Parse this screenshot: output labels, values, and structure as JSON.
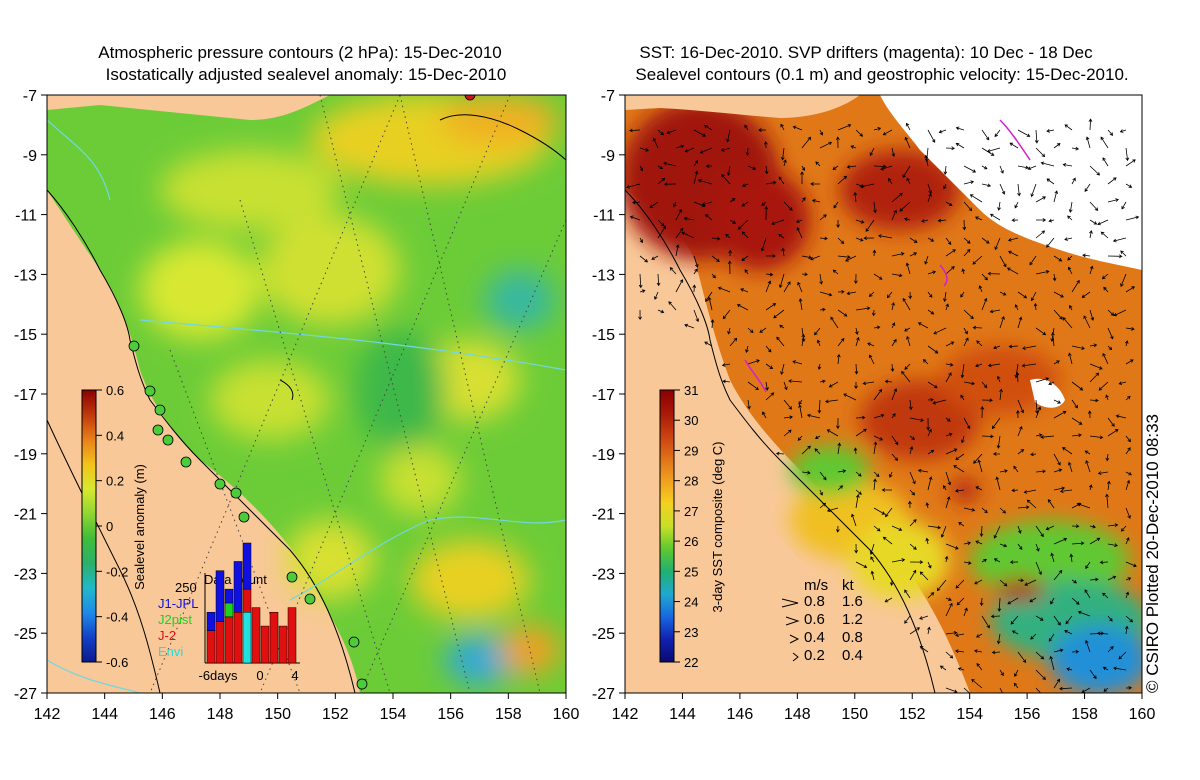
{
  "left_panel": {
    "title_lines": [
      "Atmospheric pressure contours (2 hPa): 15-Dec-2010",
      "Isostatically adjusted sealevel anomaly: 15-Dec-2010"
    ],
    "x_ticks": [
      "142",
      "144",
      "146",
      "148",
      "150",
      "152",
      "154",
      "156",
      "158",
      "160"
    ],
    "y_ticks": [
      "-7",
      "-9",
      "-11",
      "-13",
      "-15",
      "-17",
      "-19",
      "-21",
      "-23",
      "-25",
      "-27"
    ],
    "colorbar": {
      "label": "Sealevel anomaly (m)",
      "ticks": [
        "0.6",
        "0.4",
        "0.2",
        "0",
        "-0.2",
        "-0.4",
        "-0.6"
      ],
      "colors": [
        "#8b0000",
        "#c0390b",
        "#e8801a",
        "#f4c21a",
        "#d8e830",
        "#8fd630",
        "#3fbd3a",
        "#2bb06a",
        "#22b8c8",
        "#1e8be8",
        "#1440c8",
        "#0a1a8c"
      ]
    },
    "data_count": {
      "title": "Data count",
      "ymax_label": "250",
      "legend": [
        {
          "name": "J1-JPL",
          "color": "#1010e0"
        },
        {
          "name": "J2pist",
          "color": "#20d020"
        },
        {
          "name": "J-2",
          "color": "#e01010"
        },
        {
          "name": "Envi",
          "color": "#20e0e0"
        }
      ],
      "x_labels": [
        "-6days",
        "0",
        "4"
      ],
      "bars": [
        {
          "stack": [
            {
              "c": "#e01010",
              "v": 0.35
            },
            {
              "c": "#1010e0",
              "v": 0.2
            }
          ]
        },
        {
          "stack": [
            {
              "c": "#e01010",
              "v": 0.45
            },
            {
              "c": "#1010e0",
              "v": 0.55
            }
          ]
        },
        {
          "stack": [
            {
              "c": "#e01010",
              "v": 0.5
            },
            {
              "c": "#20d020",
              "v": 0.15
            },
            {
              "c": "#1010e0",
              "v": 0.15
            }
          ]
        },
        {
          "stack": [
            {
              "c": "#e01010",
              "v": 0.55
            },
            {
              "c": "#1010e0",
              "v": 0.55
            }
          ]
        },
        {
          "stack": [
            {
              "c": "#20e0e0",
              "v": 0.55
            },
            {
              "c": "#e01010",
              "v": 0.25
            },
            {
              "c": "#1010e0",
              "v": 0.5
            }
          ]
        },
        {
          "stack": [
            {
              "c": "#e01010",
              "v": 0.6
            }
          ]
        },
        {
          "stack": [
            {
              "c": "#e01010",
              "v": 0.4
            }
          ]
        },
        {
          "stack": [
            {
              "c": "#e01010",
              "v": 0.55
            }
          ]
        },
        {
          "stack": [
            {
              "c": "#e01010",
              "v": 0.4
            }
          ]
        },
        {
          "stack": [
            {
              "c": "#e01010",
              "v": 0.6
            }
          ]
        }
      ]
    }
  },
  "right_panel": {
    "title_lines": [
      "SST: 16-Dec-2010. SVP drifters (magenta): 10 Dec - 18 Dec",
      "Sealevel contours (0.1 m) and geostrophic velocity: 15-Dec-2010."
    ],
    "x_ticks": [
      "142",
      "144",
      "146",
      "148",
      "150",
      "152",
      "154",
      "156",
      "158",
      "160"
    ],
    "y_ticks": [
      "-7",
      "-9",
      "-11",
      "-13",
      "-15",
      "-17",
      "-19",
      "-21",
      "-23",
      "-25",
      "-27"
    ],
    "colorbar": {
      "label": "3-day SST composite (deg C)",
      "ticks": [
        "31",
        "30",
        "29",
        "28",
        "27",
        "26",
        "25",
        "24",
        "23",
        "22"
      ],
      "colors": [
        "#8b0000",
        "#a81808",
        "#c84010",
        "#e07018",
        "#f0a020",
        "#f4d020",
        "#c8e028",
        "#60c830",
        "#20b070",
        "#20a8d0",
        "#1868e0",
        "#1020b0",
        "#0a0a70"
      ]
    },
    "velocity_legend": {
      "header_ms": "m/s",
      "header_kt": "kt",
      "rows": [
        {
          "ms": "0.8",
          "kt": "1.6"
        },
        {
          "ms": "0.6",
          "kt": "1.2"
        },
        {
          "ms": "0.4",
          "kt": "0.8"
        },
        {
          "ms": "0.2",
          "kt": "0.4"
        }
      ]
    }
  },
  "credit": "© CSIRO Plotted 20-Dec-2010 08:33"
}
